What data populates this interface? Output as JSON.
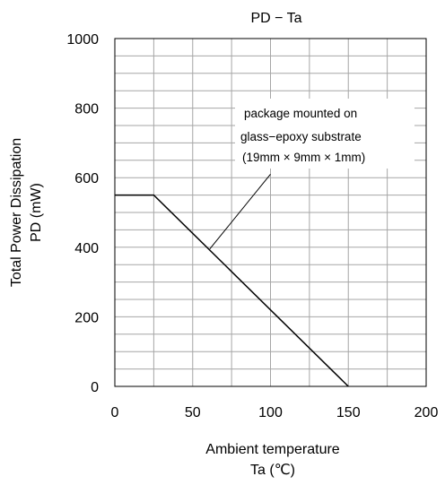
{
  "chart_data": {
    "type": "line",
    "title": "PD − Ta",
    "xlabel_line1": "Ambient temperature",
    "xlabel_line2": "Ta (℃)",
    "ylabel_line1": "Total Power Dissipation",
    "ylabel_line2": "PD (mW)",
    "xlim": [
      0,
      200
    ],
    "ylim": [
      0,
      1000
    ],
    "x_ticks": [
      0,
      50,
      100,
      150,
      200
    ],
    "y_ticks": [
      0,
      200,
      400,
      600,
      800,
      1000
    ],
    "x_minor_step": 25,
    "y_minor_step": 50,
    "grid": true,
    "series": [
      {
        "x": [
          0,
          25,
          150
        ],
        "y": [
          550,
          550,
          0
        ]
      }
    ],
    "annotation": {
      "lines": [
        "package mounted on",
        "glass−epoxy substrate",
        "(19mm × 9mm × 1mm)"
      ],
      "pointer_from": [
        100,
        610
      ],
      "pointer_to": [
        61,
        395
      ]
    }
  }
}
